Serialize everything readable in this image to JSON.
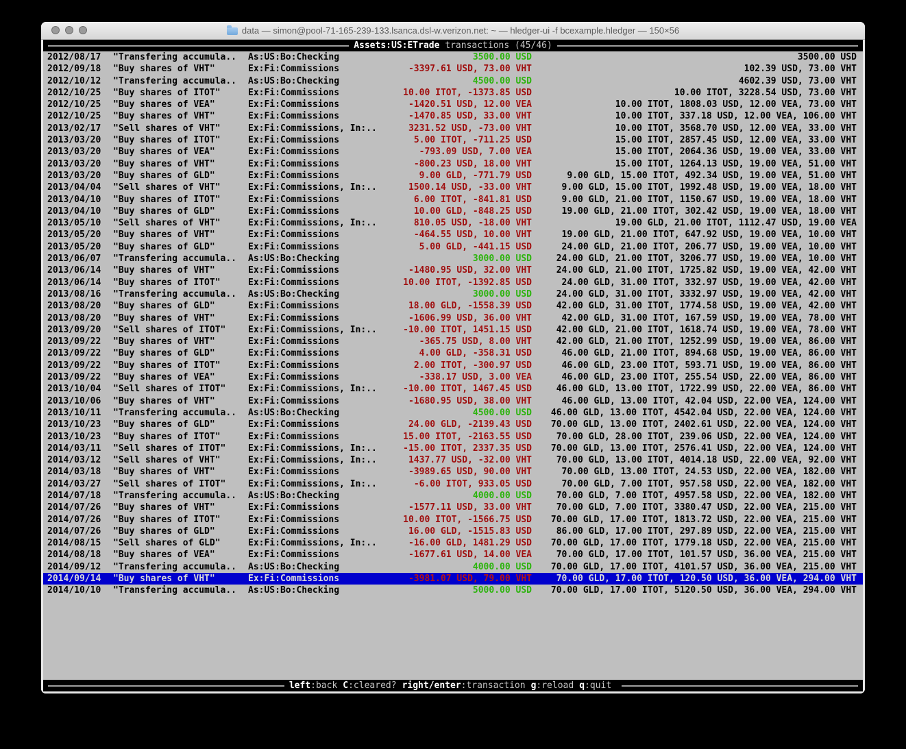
{
  "colors": {
    "terminal_background": "#bfbfbf",
    "bar_background": "#000000",
    "positive_amount": "#2db40e",
    "negative_amount": "#a01010",
    "selection_background": "#0000cd",
    "selection_text": "#d9d9d9"
  },
  "window": {
    "title": "data — simon@pool-71-165-239-133.lsanca.dsl-w.verizon.net: ~ — hledger-ui -f bcexample.hledger — 150×56",
    "buttons": [
      "close",
      "minimize",
      "zoom"
    ]
  },
  "header": {
    "account": "Assets:US:ETrade",
    "label": "transactions (45/46)"
  },
  "footer": {
    "keys": [
      {
        "key": "left",
        "desc": ":back"
      },
      {
        "key": "C",
        "desc": ":cleared?"
      },
      {
        "key": "right/enter",
        "desc": ":transaction"
      },
      {
        "key": "g",
        "desc": ":reload"
      },
      {
        "key": "q",
        "desc": ":quit"
      }
    ]
  },
  "transactions": [
    {
      "date": "2012/08/17",
      "description": "\"Transfering accumula..",
      "account": "As:US:Bo:Checking",
      "change": "3500.00 USD",
      "change_type": "pos",
      "balance": "3500.00 USD"
    },
    {
      "date": "2012/09/18",
      "description": "\"Buy shares of VHT\"",
      "account": "Ex:Fi:Commissions",
      "change": "-3397.61 USD, 73.00 VHT",
      "change_type": "neg",
      "balance": "102.39 USD, 73.00 VHT"
    },
    {
      "date": "2012/10/12",
      "description": "\"Transfering accumula..",
      "account": "As:US:Bo:Checking",
      "change": "4500.00 USD",
      "change_type": "pos",
      "balance": "4602.39 USD, 73.00 VHT"
    },
    {
      "date": "2012/10/25",
      "description": "\"Buy shares of ITOT\"",
      "account": "Ex:Fi:Commissions",
      "change": "10.00 ITOT, -1373.85 USD",
      "change_type": "neg",
      "balance": "10.00 ITOT, 3228.54 USD, 73.00 VHT"
    },
    {
      "date": "2012/10/25",
      "description": "\"Buy shares of VEA\"",
      "account": "Ex:Fi:Commissions",
      "change": "-1420.51 USD, 12.00 VEA",
      "change_type": "neg",
      "balance": "10.00 ITOT, 1808.03 USD, 12.00 VEA, 73.00 VHT"
    },
    {
      "date": "2012/10/25",
      "description": "\"Buy shares of VHT\"",
      "account": "Ex:Fi:Commissions",
      "change": "-1470.85 USD, 33.00 VHT",
      "change_type": "neg",
      "balance": "10.00 ITOT, 337.18 USD, 12.00 VEA, 106.00 VHT"
    },
    {
      "date": "2013/02/17",
      "description": "\"Sell shares of VHT\"",
      "account": "Ex:Fi:Commissions, In:..",
      "change": "3231.52 USD, -73.00 VHT",
      "change_type": "neg",
      "balance": "10.00 ITOT, 3568.70 USD, 12.00 VEA, 33.00 VHT"
    },
    {
      "date": "2013/03/20",
      "description": "\"Buy shares of ITOT\"",
      "account": "Ex:Fi:Commissions",
      "change": "5.00 ITOT, -711.25 USD",
      "change_type": "neg",
      "balance": "15.00 ITOT, 2857.45 USD, 12.00 VEA, 33.00 VHT"
    },
    {
      "date": "2013/03/20",
      "description": "\"Buy shares of VEA\"",
      "account": "Ex:Fi:Commissions",
      "change": "-793.09 USD, 7.00 VEA",
      "change_type": "neg",
      "balance": "15.00 ITOT, 2064.36 USD, 19.00 VEA, 33.00 VHT"
    },
    {
      "date": "2013/03/20",
      "description": "\"Buy shares of VHT\"",
      "account": "Ex:Fi:Commissions",
      "change": "-800.23 USD, 18.00 VHT",
      "change_type": "neg",
      "balance": "15.00 ITOT, 1264.13 USD, 19.00 VEA, 51.00 VHT"
    },
    {
      "date": "2013/03/20",
      "description": "\"Buy shares of GLD\"",
      "account": "Ex:Fi:Commissions",
      "change": "9.00 GLD, -771.79 USD",
      "change_type": "neg",
      "balance": "9.00 GLD, 15.00 ITOT, 492.34 USD, 19.00 VEA, 51.00 VHT"
    },
    {
      "date": "2013/04/04",
      "description": "\"Sell shares of VHT\"",
      "account": "Ex:Fi:Commissions, In:..",
      "change": "1500.14 USD, -33.00 VHT",
      "change_type": "neg",
      "balance": "9.00 GLD, 15.00 ITOT, 1992.48 USD, 19.00 VEA, 18.00 VHT"
    },
    {
      "date": "2013/04/10",
      "description": "\"Buy shares of ITOT\"",
      "account": "Ex:Fi:Commissions",
      "change": "6.00 ITOT, -841.81 USD",
      "change_type": "neg",
      "balance": "9.00 GLD, 21.00 ITOT, 1150.67 USD, 19.00 VEA, 18.00 VHT"
    },
    {
      "date": "2013/04/10",
      "description": "\"Buy shares of GLD\"",
      "account": "Ex:Fi:Commissions",
      "change": "10.00 GLD, -848.25 USD",
      "change_type": "neg",
      "balance": "19.00 GLD, 21.00 ITOT, 302.42 USD, 19.00 VEA, 18.00 VHT"
    },
    {
      "date": "2013/05/10",
      "description": "\"Sell shares of VHT\"",
      "account": "Ex:Fi:Commissions, In:..",
      "change": "810.05 USD, -18.00 VHT",
      "change_type": "neg",
      "balance": "19.00 GLD, 21.00 ITOT, 1112.47 USD, 19.00 VEA"
    },
    {
      "date": "2013/05/20",
      "description": "\"Buy shares of VHT\"",
      "account": "Ex:Fi:Commissions",
      "change": "-464.55 USD, 10.00 VHT",
      "change_type": "neg",
      "balance": "19.00 GLD, 21.00 ITOT, 647.92 USD, 19.00 VEA, 10.00 VHT"
    },
    {
      "date": "2013/05/20",
      "description": "\"Buy shares of GLD\"",
      "account": "Ex:Fi:Commissions",
      "change": "5.00 GLD, -441.15 USD",
      "change_type": "neg",
      "balance": "24.00 GLD, 21.00 ITOT, 206.77 USD, 19.00 VEA, 10.00 VHT"
    },
    {
      "date": "2013/06/07",
      "description": "\"Transfering accumula..",
      "account": "As:US:Bo:Checking",
      "change": "3000.00 USD",
      "change_type": "pos",
      "balance": "24.00 GLD, 21.00 ITOT, 3206.77 USD, 19.00 VEA, 10.00 VHT"
    },
    {
      "date": "2013/06/14",
      "description": "\"Buy shares of VHT\"",
      "account": "Ex:Fi:Commissions",
      "change": "-1480.95 USD, 32.00 VHT",
      "change_type": "neg",
      "balance": "24.00 GLD, 21.00 ITOT, 1725.82 USD, 19.00 VEA, 42.00 VHT"
    },
    {
      "date": "2013/06/14",
      "description": "\"Buy shares of ITOT\"",
      "account": "Ex:Fi:Commissions",
      "change": "10.00 ITOT, -1392.85 USD",
      "change_type": "neg",
      "balance": "24.00 GLD, 31.00 ITOT, 332.97 USD, 19.00 VEA, 42.00 VHT"
    },
    {
      "date": "2013/08/16",
      "description": "\"Transfering accumula..",
      "account": "As:US:Bo:Checking",
      "change": "3000.00 USD",
      "change_type": "pos",
      "balance": "24.00 GLD, 31.00 ITOT, 3332.97 USD, 19.00 VEA, 42.00 VHT"
    },
    {
      "date": "2013/08/20",
      "description": "\"Buy shares of GLD\"",
      "account": "Ex:Fi:Commissions",
      "change": "18.00 GLD, -1558.39 USD",
      "change_type": "neg",
      "balance": "42.00 GLD, 31.00 ITOT, 1774.58 USD, 19.00 VEA, 42.00 VHT"
    },
    {
      "date": "2013/08/20",
      "description": "\"Buy shares of VHT\"",
      "account": "Ex:Fi:Commissions",
      "change": "-1606.99 USD, 36.00 VHT",
      "change_type": "neg",
      "balance": "42.00 GLD, 31.00 ITOT, 167.59 USD, 19.00 VEA, 78.00 VHT"
    },
    {
      "date": "2013/09/20",
      "description": "\"Sell shares of ITOT\"",
      "account": "Ex:Fi:Commissions, In:..",
      "change": "-10.00 ITOT, 1451.15 USD",
      "change_type": "neg",
      "balance": "42.00 GLD, 21.00 ITOT, 1618.74 USD, 19.00 VEA, 78.00 VHT"
    },
    {
      "date": "2013/09/22",
      "description": "\"Buy shares of VHT\"",
      "account": "Ex:Fi:Commissions",
      "change": "-365.75 USD, 8.00 VHT",
      "change_type": "neg",
      "balance": "42.00 GLD, 21.00 ITOT, 1252.99 USD, 19.00 VEA, 86.00 VHT"
    },
    {
      "date": "2013/09/22",
      "description": "\"Buy shares of GLD\"",
      "account": "Ex:Fi:Commissions",
      "change": "4.00 GLD, -358.31 USD",
      "change_type": "neg",
      "balance": "46.00 GLD, 21.00 ITOT, 894.68 USD, 19.00 VEA, 86.00 VHT"
    },
    {
      "date": "2013/09/22",
      "description": "\"Buy shares of ITOT\"",
      "account": "Ex:Fi:Commissions",
      "change": "2.00 ITOT, -300.97 USD",
      "change_type": "neg",
      "balance": "46.00 GLD, 23.00 ITOT, 593.71 USD, 19.00 VEA, 86.00 VHT"
    },
    {
      "date": "2013/09/22",
      "description": "\"Buy shares of VEA\"",
      "account": "Ex:Fi:Commissions",
      "change": "-338.17 USD, 3.00 VEA",
      "change_type": "neg",
      "balance": "46.00 GLD, 23.00 ITOT, 255.54 USD, 22.00 VEA, 86.00 VHT"
    },
    {
      "date": "2013/10/04",
      "description": "\"Sell shares of ITOT\"",
      "account": "Ex:Fi:Commissions, In:..",
      "change": "-10.00 ITOT, 1467.45 USD",
      "change_type": "neg",
      "balance": "46.00 GLD, 13.00 ITOT, 1722.99 USD, 22.00 VEA, 86.00 VHT"
    },
    {
      "date": "2013/10/06",
      "description": "\"Buy shares of VHT\"",
      "account": "Ex:Fi:Commissions",
      "change": "-1680.95 USD, 38.00 VHT",
      "change_type": "neg",
      "balance": "46.00 GLD, 13.00 ITOT, 42.04 USD, 22.00 VEA, 124.00 VHT"
    },
    {
      "date": "2013/10/11",
      "description": "\"Transfering accumula..",
      "account": "As:US:Bo:Checking",
      "change": "4500.00 USD",
      "change_type": "pos",
      "balance": "46.00 GLD, 13.00 ITOT, 4542.04 USD, 22.00 VEA, 124.00 VHT"
    },
    {
      "date": "2013/10/23",
      "description": "\"Buy shares of GLD\"",
      "account": "Ex:Fi:Commissions",
      "change": "24.00 GLD, -2139.43 USD",
      "change_type": "neg",
      "balance": "70.00 GLD, 13.00 ITOT, 2402.61 USD, 22.00 VEA, 124.00 VHT"
    },
    {
      "date": "2013/10/23",
      "description": "\"Buy shares of ITOT\"",
      "account": "Ex:Fi:Commissions",
      "change": "15.00 ITOT, -2163.55 USD",
      "change_type": "neg",
      "balance": "70.00 GLD, 28.00 ITOT, 239.06 USD, 22.00 VEA, 124.00 VHT"
    },
    {
      "date": "2014/03/11",
      "description": "\"Sell shares of ITOT\"",
      "account": "Ex:Fi:Commissions, In:..",
      "change": "-15.00 ITOT, 2337.35 USD",
      "change_type": "neg",
      "balance": "70.00 GLD, 13.00 ITOT, 2576.41 USD, 22.00 VEA, 124.00 VHT"
    },
    {
      "date": "2014/03/12",
      "description": "\"Sell shares of VHT\"",
      "account": "Ex:Fi:Commissions, In:..",
      "change": "1437.77 USD, -32.00 VHT",
      "change_type": "neg",
      "balance": "70.00 GLD, 13.00 ITOT, 4014.18 USD, 22.00 VEA, 92.00 VHT"
    },
    {
      "date": "2014/03/18",
      "description": "\"Buy shares of VHT\"",
      "account": "Ex:Fi:Commissions",
      "change": "-3989.65 USD, 90.00 VHT",
      "change_type": "neg",
      "balance": "70.00 GLD, 13.00 ITOT, 24.53 USD, 22.00 VEA, 182.00 VHT"
    },
    {
      "date": "2014/03/27",
      "description": "\"Sell shares of ITOT\"",
      "account": "Ex:Fi:Commissions, In:..",
      "change": "-6.00 ITOT, 933.05 USD",
      "change_type": "neg",
      "balance": "70.00 GLD, 7.00 ITOT, 957.58 USD, 22.00 VEA, 182.00 VHT"
    },
    {
      "date": "2014/07/18",
      "description": "\"Transfering accumula..",
      "account": "As:US:Bo:Checking",
      "change": "4000.00 USD",
      "change_type": "pos",
      "balance": "70.00 GLD, 7.00 ITOT, 4957.58 USD, 22.00 VEA, 182.00 VHT"
    },
    {
      "date": "2014/07/26",
      "description": "\"Buy shares of VHT\"",
      "account": "Ex:Fi:Commissions",
      "change": "-1577.11 USD, 33.00 VHT",
      "change_type": "neg",
      "balance": "70.00 GLD, 7.00 ITOT, 3380.47 USD, 22.00 VEA, 215.00 VHT"
    },
    {
      "date": "2014/07/26",
      "description": "\"Buy shares of ITOT\"",
      "account": "Ex:Fi:Commissions",
      "change": "10.00 ITOT, -1566.75 USD",
      "change_type": "neg",
      "balance": "70.00 GLD, 17.00 ITOT, 1813.72 USD, 22.00 VEA, 215.00 VHT"
    },
    {
      "date": "2014/07/26",
      "description": "\"Buy shares of GLD\"",
      "account": "Ex:Fi:Commissions",
      "change": "16.00 GLD, -1515.83 USD",
      "change_type": "neg",
      "balance": "86.00 GLD, 17.00 ITOT, 297.89 USD, 22.00 VEA, 215.00 VHT"
    },
    {
      "date": "2014/08/15",
      "description": "\"Sell shares of GLD\"",
      "account": "Ex:Fi:Commissions, In:..",
      "change": "-16.00 GLD, 1481.29 USD",
      "change_type": "neg",
      "balance": "70.00 GLD, 17.00 ITOT, 1779.18 USD, 22.00 VEA, 215.00 VHT"
    },
    {
      "date": "2014/08/18",
      "description": "\"Buy shares of VEA\"",
      "account": "Ex:Fi:Commissions",
      "change": "-1677.61 USD, 14.00 VEA",
      "change_type": "neg",
      "balance": "70.00 GLD, 17.00 ITOT, 101.57 USD, 36.00 VEA, 215.00 VHT"
    },
    {
      "date": "2014/09/12",
      "description": "\"Transfering accumula..",
      "account": "As:US:Bo:Checking",
      "change": "4000.00 USD",
      "change_type": "pos",
      "balance": "70.00 GLD, 17.00 ITOT, 4101.57 USD, 36.00 VEA, 215.00 VHT"
    },
    {
      "date": "2014/09/14",
      "description": "\"Buy shares of VHT\"",
      "account": "Ex:Fi:Commissions",
      "change": "-3981.07 USD, 79.00 VHT",
      "change_type": "neg",
      "balance": "70.00 GLD, 17.00 ITOT, 120.50 USD, 36.00 VEA, 294.00 VHT",
      "selected": true
    },
    {
      "date": "2014/10/10",
      "description": "\"Transfering accumula..",
      "account": "As:US:Bo:Checking",
      "change": "5000.00 USD",
      "change_type": "pos",
      "balance": "70.00 GLD, 17.00 ITOT, 5120.50 USD, 36.00 VEA, 294.00 VHT"
    }
  ]
}
